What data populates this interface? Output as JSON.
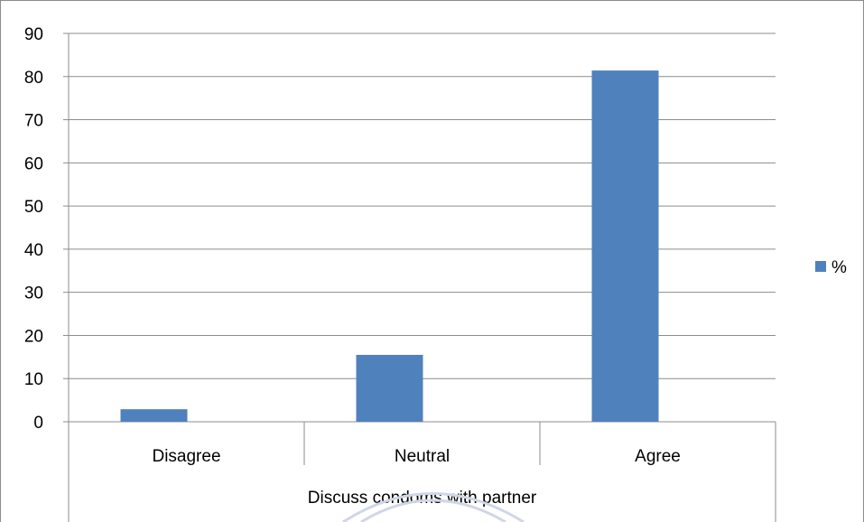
{
  "chart_data": {
    "type": "bar",
    "categories": [
      "Disagree",
      "Neutral",
      "Agree"
    ],
    "group_label": "Discuss condoms with partner",
    "series": [
      {
        "name": "%",
        "values": [
          2.9,
          15.5,
          81.4
        ],
        "color": "#4f81bd"
      }
    ],
    "yticks": [
      "0",
      "10",
      "20",
      "30",
      "40",
      "50",
      "60",
      "70",
      "80",
      "90"
    ],
    "ylim": [
      0,
      90
    ],
    "grid": true,
    "legend_position": "right"
  }
}
